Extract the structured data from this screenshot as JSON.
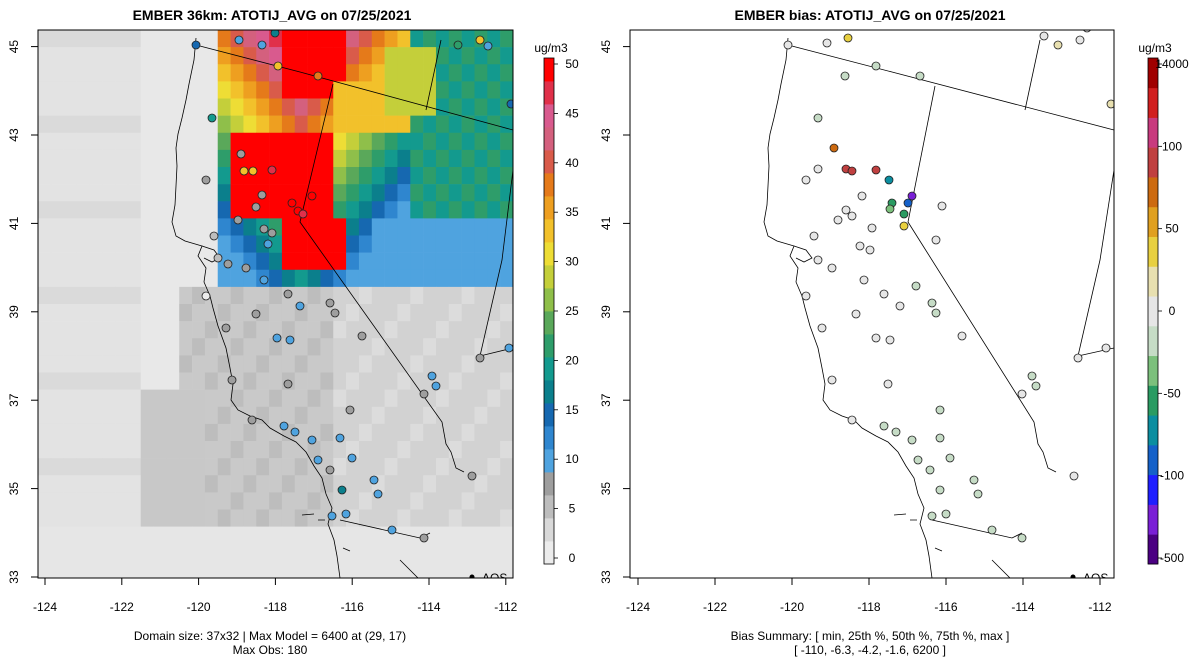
{
  "panels": [
    {
      "title": "EMBER 36km: ATOTIJ_AVG on 07/25/2021",
      "colorbar": {
        "unit": "ug/m3",
        "ticks": [
          "0",
          "5",
          "10",
          "15",
          "20",
          "25",
          "30",
          "35",
          "40",
          "45",
          "50"
        ],
        "colors": [
          "#ececec",
          "#d9d9d9",
          "#bdbdbd",
          "#9e9e9e",
          "#4fa3df",
          "#2f86cf",
          "#1668b0",
          "#0b7f8c",
          "#139a8e",
          "#2e9d6a",
          "#5aa85a",
          "#8fbf4a",
          "#c4cf3a",
          "#eedd35",
          "#f2c12b",
          "#ee9f20",
          "#e57a1a",
          "#d95b4a",
          "#d4607e",
          "#d95a8e",
          "#e0304a",
          "#ff0000"
        ]
      },
      "footer_lines": [
        "Domain size: 37x32 | Max Model = 6400 at (29, 17)",
        "Max Obs: 180"
      ]
    },
    {
      "title": "EMBER bias: ATOTIJ_AVG on 07/25/2021",
      "colorbar": {
        "unit": "ug/m3",
        "ticks": [
          "-500",
          "-100",
          "-50",
          "0",
          "50",
          "100",
          "14000"
        ],
        "colors": [
          "#4b0082",
          "#7a1fd6",
          "#1f1fff",
          "#1561c9",
          "#0b8ea0",
          "#2a9b62",
          "#7cc07c",
          "#c6dcc6",
          "#e6e6e6",
          "#e8e0b0",
          "#e8d040",
          "#e0a020",
          "#cc6a10",
          "#c04040",
          "#c83a7e",
          "#d11f1f",
          "#a00000"
        ]
      },
      "footer_lines": [
        "Bias Summary: [ min, 25th %, 50th %, 75th %, max ]",
        "[ -110,   -6.3,   -4.2,   -1.6,   6200 ]"
      ]
    }
  ],
  "axes": {
    "x_ticks": [
      "-124",
      "-122",
      "-120",
      "-118",
      "-116",
      "-114",
      "-112"
    ],
    "y_ticks": [
      "33",
      "35",
      "37",
      "39",
      "41",
      "43",
      "45"
    ]
  },
  "network_label": "AQS",
  "colors": {
    "na_gray": "#d0d0d0",
    "boundary": "#000000"
  }
}
